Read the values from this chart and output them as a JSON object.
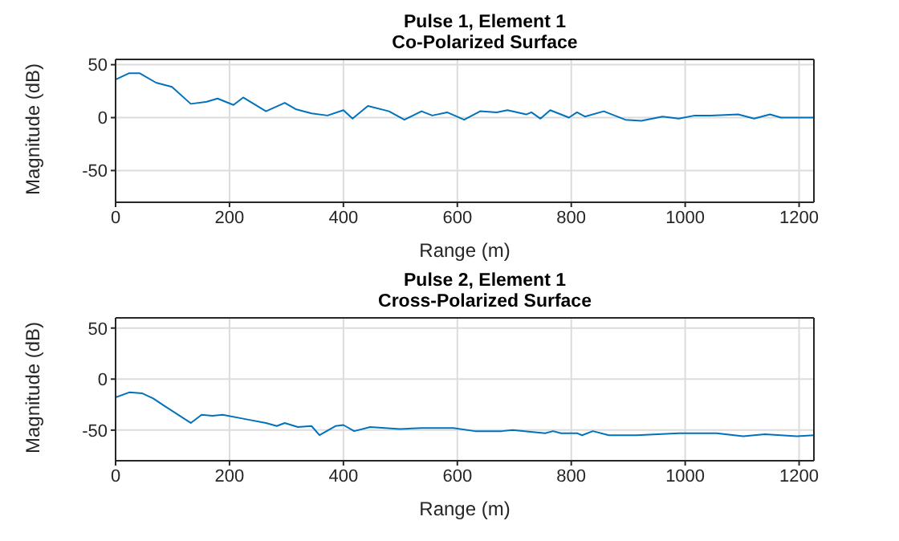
{
  "chart_data": [
    {
      "type": "line",
      "title": "Pulse 1, Element 1",
      "subtitle": "Co-Polarized Surface",
      "xlabel": "Range (m)",
      "ylabel": "Magnitude (dB)",
      "x": [
        0,
        24,
        42,
        71,
        99,
        132,
        160,
        179,
        207,
        224,
        264,
        297,
        316,
        344,
        372,
        400,
        416,
        443,
        480,
        507,
        537,
        556,
        582,
        612,
        640,
        669,
        688,
        721,
        730,
        746,
        763,
        796,
        810,
        824,
        857,
        895,
        923,
        960,
        989,
        1017,
        1045,
        1093,
        1121,
        1149,
        1168,
        1226
      ],
      "series": [
        {
          "color": "#0072bd",
          "values": [
            36,
            42,
            42,
            33,
            29,
            13,
            15,
            18,
            12,
            19,
            6,
            14,
            8,
            4,
            2,
            7,
            -1,
            11,
            6,
            -2,
            6,
            2,
            5,
            -2,
            6,
            5,
            7,
            3,
            5,
            -1,
            7,
            0,
            5,
            1,
            6,
            -2,
            -3,
            1,
            -1,
            2,
            2,
            3,
            -1,
            3,
            0,
            0
          ]
        }
      ],
      "xlim": [
        0,
        1226
      ],
      "ylim": [
        -80,
        55
      ],
      "xticks": [
        0,
        200,
        400,
        600,
        800,
        1000,
        1200
      ],
      "yticks": [
        -50,
        0,
        50
      ],
      "grid": true
    },
    {
      "type": "line",
      "title": "Pulse 2, Element 1",
      "subtitle": "Cross-Polarized Surface",
      "xlabel": "Range (m)",
      "ylabel": "Magnitude (dB)",
      "x": [
        0,
        24,
        47,
        66,
        85,
        132,
        151,
        170,
        188,
        226,
        264,
        283,
        297,
        320,
        344,
        358,
        386,
        400,
        419,
        447,
        499,
        537,
        593,
        631,
        678,
        697,
        754,
        768,
        782,
        810,
        819,
        838,
        866,
        914,
        989,
        1055,
        1102,
        1140,
        1196,
        1226
      ],
      "series": [
        {
          "color": "#0072bd",
          "values": [
            -18,
            -13,
            -14,
            -19,
            -26,
            -43,
            -35,
            -36,
            -35,
            -39,
            -43,
            -46,
            -43,
            -47,
            -46,
            -55,
            -46,
            -45,
            -51,
            -47,
            -49,
            -48,
            -48,
            -51,
            -51,
            -50,
            -53,
            -51,
            -53,
            -53,
            -55,
            -51,
            -55,
            -55,
            -53,
            -53,
            -56,
            -54,
            -56,
            -55
          ]
        }
      ],
      "xlim": [
        0,
        1226
      ],
      "ylim": [
        -80,
        60
      ],
      "xticks": [
        0,
        200,
        400,
        600,
        800,
        1000,
        1200
      ],
      "yticks": [
        -50,
        0,
        50
      ],
      "grid": true
    }
  ]
}
